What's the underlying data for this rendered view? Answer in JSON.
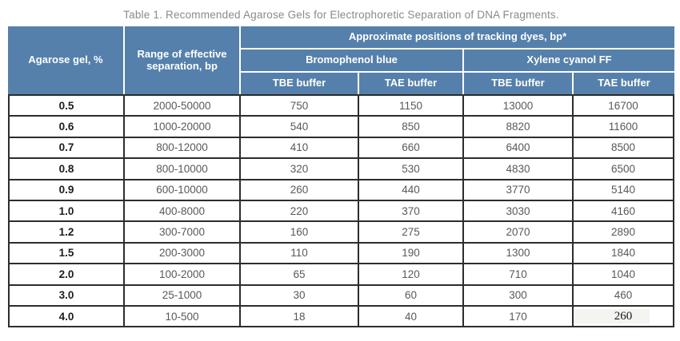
{
  "title": "Table 1. Recommended Agarose Gels for Electrophoretic Separation of DNA Fragments.",
  "table": {
    "headers": {
      "agarose": "Agarose gel, %",
      "range": "Range of effective separation, bp",
      "tracking": "Approximate positions of tracking dyes, bp*",
      "bromophenol": "Bromophenol blue",
      "xylene": "Xylene cyanol FF",
      "buffers": [
        "TBE buffer",
        "TAE buffer",
        "TBE buffer",
        "TAE buffer"
      ]
    },
    "rows": [
      [
        "0.5",
        "2000-50000",
        "750",
        "1150",
        "13000",
        "16700"
      ],
      [
        "0.6",
        "1000-20000",
        "540",
        "850",
        "8820",
        "11600"
      ],
      [
        "0.7",
        "800-12000",
        "410",
        "660",
        "6400",
        "8500"
      ],
      [
        "0.8",
        "800-10000",
        "320",
        "530",
        "4830",
        "6500"
      ],
      [
        "0.9",
        "600-10000",
        "260",
        "440",
        "3770",
        "5140"
      ],
      [
        "1.0",
        "400-8000",
        "220",
        "370",
        "3030",
        "4160"
      ],
      [
        "1.2",
        "300-7000",
        "160",
        "275",
        "2070",
        "2890"
      ],
      [
        "1.5",
        "200-3000",
        "110",
        "190",
        "1300",
        "1840"
      ],
      [
        "2.0",
        "100-2000",
        "65",
        "120",
        "710",
        "1040"
      ],
      [
        "3.0",
        "25-1000",
        "30",
        "60",
        "300",
        "460"
      ],
      [
        "4.0",
        "10-500",
        "18",
        "40",
        "170",
        "260"
      ]
    ]
  },
  "colors": {
    "header_bg": "#5580ab",
    "header_text": "#ffffff",
    "body_border": "#2d2d2d",
    "body_text": "#58595b",
    "gel_column_text": "#1d1d1f",
    "title_text": "#8a8a8a"
  }
}
